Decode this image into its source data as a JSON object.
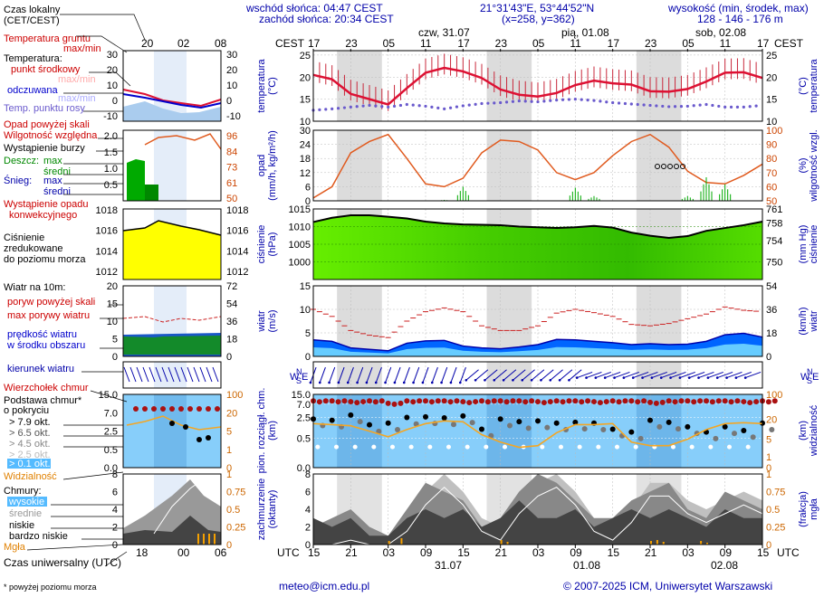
{
  "header": {
    "sunrise": "wschód słońca: 04:47 CEST",
    "sunset": "zachód słońca: 20:34 CEST",
    "coords": "21°31'43\"E, 53°44'52\"N",
    "grid": "(x=258,  y=362)",
    "height_label": "wysokość (min, środek, max)",
    "height_values": "128 - 146 - 176 m"
  },
  "legend": {
    "local_time": "Czas lokalny",
    "local_time2": "(CET/CEST)",
    "ground_temp": "Temperatura gruntu",
    "ground_temp2": "max/min",
    "temperature": "Temperatura:",
    "midpoint": "punkt środkowy",
    "maxmin": "max/min",
    "felt": "odczuwana",
    "maxmin2": "max/min",
    "dewpoint": "Temp. punktu rosy",
    "precip_above": "Opad powyżej skali",
    "humidity": "Wilgotność względna",
    "storm": "Wystąpienie burzy",
    "rain": "Deszcz:",
    "rain_max": "max",
    "rain_mean": "średni",
    "snow": "Śnieg:",
    "snow_max": "max",
    "snow_mean": "średni",
    "conv": "Wystąpienie opadu",
    "conv2": "konwekcyjnego",
    "pressure": "Ciśnienie",
    "pressure2": "zredukowane",
    "pressure3": "do poziomu morza",
    "wind10": "Wiatr na 10m:",
    "gust_above": "poryw powyżej skali",
    "gust_max": "max porywy wiatru",
    "wind_mean": "prędkość wiatru",
    "wind_mean2": "w środku obszaru",
    "wind_dir": "kierunek wiatru",
    "cloud_top": "Wierzchołek chmur",
    "cloud_base": "Podstawa chmur*",
    "coverage": "o pokryciu",
    "okt1": "> 7.9 okt.",
    "okt2": "> 6.5 okt.",
    "okt3": "> 4.5 okt.",
    "okt4": "> 2.5 okt.",
    "okt5": "> 0.1 okt.",
    "visibility": "Widzialność",
    "clouds": "Chmury:",
    "high": "wysokie",
    "mid": "średnie",
    "low": "niskie",
    "vlow": "bardzo niskie",
    "fog": "Mgła",
    "utc_label": "Czas uniwersalny (UTC)",
    "footnote": "* powyżej poziomu morza"
  },
  "axis": {
    "cest": "CEST",
    "utc": "UTC",
    "top_hours": [
      "17",
      "23",
      "05",
      "11",
      "17",
      "23",
      "05",
      "11",
      "17",
      "23",
      "05",
      "11",
      "17"
    ],
    "bottom_hours": [
      "15",
      "21",
      "03",
      "09",
      "15",
      "21",
      "03",
      "09",
      "15",
      "21",
      "03",
      "09",
      "15"
    ],
    "days_top": [
      "czw, 31.07",
      "pią, 01.08",
      "sob, 02.08"
    ],
    "days_bottom": [
      "31.07",
      "01.08",
      "02.08"
    ],
    "legend_top_hours": [
      "20",
      "02",
      "08"
    ],
    "legend_bottom_hours": [
      "18",
      "00",
      "06"
    ]
  },
  "panel_labels": {
    "temp_l": "temperatura",
    "temp_l2": "(°C)",
    "temp_r": "temperatura",
    "temp_r2": "(°C)",
    "prec_l": "opad",
    "prec_l2": "(mm/h, kg/m²/h)",
    "prec_r": "wilgotność wzgl.",
    "prec_r2": "(%)",
    "pres_l": "ciśnienie",
    "pres_l2": "(hPa)",
    "pres_r": "ciśnienie",
    "pres_r2": "(mm Hg)",
    "wind_l": "wiatr",
    "wind_l2": "(m/s)",
    "wind_r": "wiatr",
    "wind_r2": "(km/h)",
    "cl_l": "pion. rozciągł. chm.",
    "cl_l2": "(km)",
    "cl_r": "widzialność",
    "cl_r2": "(km)",
    "cc_l": "zachmurzenie",
    "cc_l2": "(oktanty)",
    "cc_r": "mgła",
    "cc_r2": "(frakcja)"
  },
  "ticks": {
    "temp_left": [
      "25",
      "20",
      "15",
      "10"
    ],
    "temp_right": [
      "25",
      "20",
      "15",
      "10"
    ],
    "prec_left": [
      "30",
      "24",
      "18",
      "12",
      "6",
      "0"
    ],
    "prec_right": [
      "100",
      "90",
      "80",
      "70",
      "60",
      "50"
    ],
    "pres_left": [
      "1015",
      "1010",
      "1005",
      "1000"
    ],
    "pres_right": [
      "761",
      "758",
      "754",
      "750"
    ],
    "wind_left": [
      "15",
      "10",
      "5",
      "0"
    ],
    "wind_right": [
      "54",
      "36",
      "18",
      "0"
    ],
    "cl_left": [
      "15.0",
      "7.0",
      "2.5",
      "0.5",
      "0.0"
    ],
    "cl_right": [
      "100",
      "20",
      "5",
      "1",
      "0"
    ],
    "cc_left": [
      "8",
      "6",
      "4",
      "2",
      "0"
    ],
    "cc_right": [
      "1",
      "0.75",
      "0.5",
      "0.25",
      "0"
    ],
    "leg_temp_l": [
      "30",
      "20",
      "10",
      "0",
      "-10"
    ],
    "leg_temp_r": [
      "30",
      "20",
      "10",
      "0",
      "-10"
    ],
    "leg_prec_l": [
      "2.0",
      "1.5",
      "1.0",
      "0.5"
    ],
    "leg_prec_r": [
      "96",
      "84",
      "73",
      "61",
      "50"
    ],
    "leg_pres_l": [
      "1018",
      "1016",
      "1014",
      "1012"
    ],
    "leg_pres_r": [
      "1018",
      "1016",
      "1014",
      "1012"
    ],
    "leg_wind_l": [
      "20",
      "15",
      "10",
      "5",
      "0"
    ],
    "leg_wind_r": [
      "72",
      "54",
      "36",
      "18",
      "0"
    ],
    "leg_cl_l": [
      "15.0",
      "7.0",
      "2.5",
      "0.5",
      "0.0"
    ],
    "leg_cl_r": [
      "100",
      "20",
      "5",
      "1",
      "0"
    ],
    "leg_cc_l": [
      "8",
      "6",
      "4",
      "2",
      "0"
    ],
    "leg_cc_r": [
      "1",
      "0.75",
      "0.5",
      "0.25",
      "0"
    ]
  },
  "footer": {
    "email": "meteo@icm.edu.pl",
    "copyright": "© 2007-2025 ICM, Uniwersytet Warszawski"
  },
  "colors": {
    "temp": "#dd1133",
    "dew": "#6a5acd",
    "humidity": "#e05a1e",
    "precip": "#00aa00",
    "pressure_fill": "#44dd00",
    "wind_fill": "#0066ff",
    "gust": "#cc2222",
    "vis": "#f5a623",
    "cloud_panel": "#87cefa",
    "night": "#d8d8d8"
  },
  "chart_data": {
    "type": "line",
    "x_hours_utc": [
      15,
      18,
      21,
      24,
      27,
      30,
      33,
      36,
      39,
      42,
      45,
      48,
      51,
      54,
      57,
      60,
      63,
      66,
      69,
      72,
      75,
      78,
      81,
      84,
      87
    ],
    "series": [
      {
        "name": "temperatura",
        "values": [
          20.5,
          19.5,
          16.2,
          15,
          13.8,
          17.5,
          21,
          22.1,
          21.3,
          19.8,
          17.2,
          16,
          15.6,
          16.4,
          18.2,
          19.2,
          18.6,
          18.3,
          16.8,
          16.7,
          17.3,
          19,
          21,
          21.1,
          19.8
        ]
      },
      {
        "name": "Temp. punktu rosy",
        "values": [
          12.5,
          12.8,
          13.2,
          13.6,
          13.2,
          13.8,
          13.4,
          12.8,
          13.5,
          14,
          14.2,
          14.6,
          14.4,
          14.8,
          15,
          14.7,
          14.2,
          13.9,
          13.6,
          13.3,
          13.4,
          13.8,
          13.2,
          13.2,
          13.6
        ]
      },
      {
        "name": "Wilgotność względna",
        "values": [
          52,
          60,
          84,
          92,
          97,
          80,
          62,
          60,
          66,
          84,
          93,
          92,
          86,
          70,
          65,
          70,
          82,
          92,
          97,
          88,
          71,
          63,
          62,
          68,
          76
        ]
      },
      {
        "name": "ciśnienie",
        "values": [
          1011.3,
          1012.5,
          1013.2,
          1013.2,
          1012.8,
          1012.3,
          1011.4,
          1010.9,
          1010.6,
          1010.5,
          1010.4,
          1010.0,
          1009.8,
          1009.6,
          1009.8,
          1010.2,
          1009.7,
          1008.3,
          1007.4,
          1006.8,
          1007.3,
          1008.8,
          1009.6,
          1010.4,
          1011.4
        ]
      },
      {
        "name": "prędkość wiatru",
        "values": [
          3.5,
          3.2,
          1.8,
          1.5,
          1.2,
          2.8,
          3.3,
          3.4,
          2.2,
          1.8,
          1.6,
          2,
          2.5,
          3.6,
          3.5,
          3.2,
          2.9,
          2.5,
          2.7,
          2.5,
          2.6,
          3.2,
          4.6,
          4.9,
          4.1
        ]
      },
      {
        "name": "max porywy wiatru",
        "values": [
          10,
          8.5,
          5.5,
          4.5,
          4,
          7.5,
          9.5,
          10.3,
          9.5,
          6.5,
          5.5,
          5.5,
          6.5,
          9.2,
          10,
          9.3,
          8.5,
          6.8,
          6.5,
          7,
          8,
          9,
          10.5,
          9.8,
          9.5
        ]
      }
    ],
    "precip_mm": [
      0,
      0,
      0,
      0,
      0,
      0,
      0,
      0.4,
      6,
      0,
      0,
      0,
      0,
      0,
      5.6,
      2,
      0,
      0,
      0,
      0,
      2,
      10,
      7,
      0,
      0
    ],
    "xlabel": "UTC",
    "ylim_temp": [
      10,
      26
    ],
    "ylim_pressure": [
      995,
      1015
    ]
  }
}
